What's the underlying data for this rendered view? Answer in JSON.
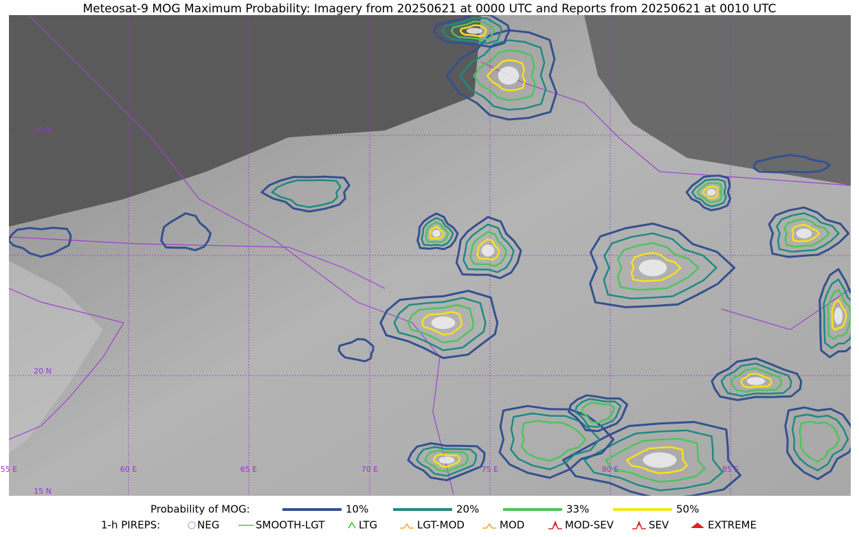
{
  "title": "Meteosat-9 MOG Maximum Probability: Imagery from 20250621 at 0000 UTC and Reports from 20250621 at 0010 UTC",
  "map": {
    "lat_labels": [
      "30 N",
      "20 N",
      "15 N"
    ],
    "lon_labels": [
      "55 E",
      "60 E",
      "65 E",
      "70 E",
      "75 E",
      "80 E",
      "85 E"
    ]
  },
  "legend": {
    "title": "Probability of MOG:",
    "items": [
      {
        "label": "10%",
        "color": "#34508f"
      },
      {
        "label": "20%",
        "color": "#1f8a80"
      },
      {
        "label": "33%",
        "color": "#4cc45c"
      },
      {
        "label": "50%",
        "color": "#f7e21f"
      }
    ]
  },
  "pireps": {
    "title": "1-h PIREPS:",
    "items": [
      {
        "label": "NEG",
        "color": "#b9b9ee"
      },
      {
        "label": "SMOOTH-LGT",
        "color": "#39d339"
      },
      {
        "label": "LTG",
        "color": "#22cc22"
      },
      {
        "label": "LGT-MOD",
        "color": "#f5a623"
      },
      {
        "label": "MOD",
        "color": "#f5a623"
      },
      {
        "label": "MOD-SEV",
        "color": "#e02020"
      },
      {
        "label": "SEV",
        "color": "#e02020"
      },
      {
        "label": "EXTREME",
        "color": "#e02020"
      }
    ]
  }
}
